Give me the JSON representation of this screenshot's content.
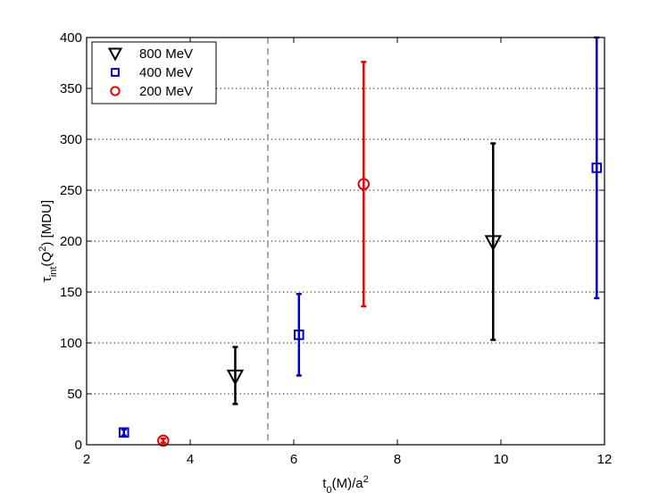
{
  "chart_data": {
    "type": "scatter",
    "title": "",
    "xlabel": {
      "main": "t",
      "sub": "0",
      "rest": "(M)/a",
      "sup": "2"
    },
    "ylabel": {
      "main": "τ",
      "sub": "int",
      "mid": "(Q",
      "sup": "2",
      "rest": ") [MDU]"
    },
    "xlim": [
      2,
      12
    ],
    "ylim": [
      0,
      400
    ],
    "xticks": [
      2,
      4,
      6,
      8,
      10,
      12
    ],
    "yticks": [
      0,
      50,
      100,
      150,
      200,
      250,
      300,
      350,
      400
    ],
    "grid": "horizontal-dotted",
    "vline": {
      "x": 5.5,
      "style": "dashed",
      "color": "#555555"
    },
    "legend": {
      "placement": "top-left"
    },
    "series": [
      {
        "name": "800 MeV",
        "marker": "triangle-down",
        "color": "#000000",
        "points": [
          {
            "x": 4.87,
            "y": 67,
            "ylow": 40,
            "yhigh": 96
          },
          {
            "x": 9.85,
            "y": 199,
            "ylow": 103,
            "yhigh": 296
          }
        ]
      },
      {
        "name": "400 MeV",
        "marker": "square",
        "color": "#0000cc",
        "points": [
          {
            "x": 2.72,
            "y": 12,
            "ylow": 9,
            "yhigh": 15
          },
          {
            "x": 6.1,
            "y": 108,
            "ylow": 68,
            "yhigh": 148
          },
          {
            "x": 11.85,
            "y": 272,
            "ylow": 144,
            "yhigh": 400
          }
        ]
      },
      {
        "name": "200 MeV",
        "marker": "circle",
        "color": "#ee0000",
        "points": [
          {
            "x": 3.48,
            "y": 4,
            "ylow": 2,
            "yhigh": 6
          },
          {
            "x": 7.35,
            "y": 256,
            "ylow": 136,
            "yhigh": 376
          }
        ]
      }
    ]
  }
}
